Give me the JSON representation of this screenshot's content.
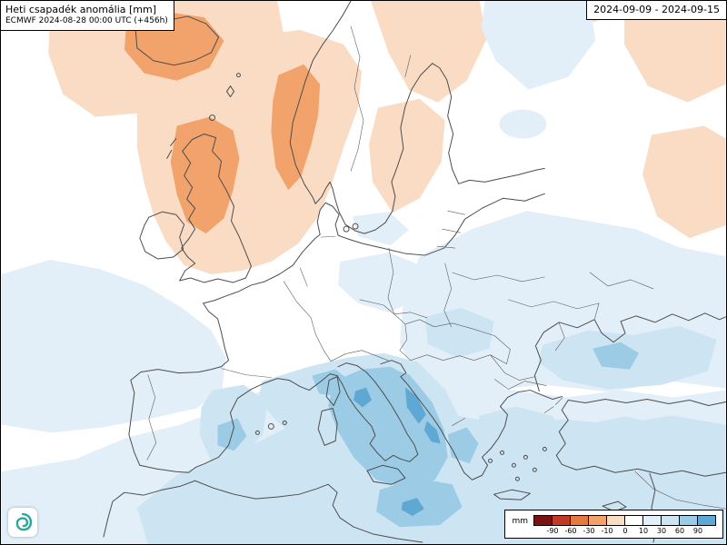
{
  "header": {
    "title": "Heti csapadék anomália [mm]",
    "model_line": "ECMWF 2024-08-28 00:00 UTC (+456h)"
  },
  "period": {
    "range": "2024-09-09 - 2024-09-15"
  },
  "legend": {
    "unit": "mm",
    "ticks": [
      "-90",
      "-60",
      "-30",
      "-10",
      "0",
      "10",
      "30",
      "60",
      "90"
    ],
    "colors": [
      "#7a1212",
      "#c03a26",
      "#e5793f",
      "#f2a36c",
      "#fadcc4",
      "#ffffff",
      "#e2eff8",
      "#cde4f2",
      "#9ccbe5",
      "#5fa8d3"
    ]
  },
  "map": {
    "coast_color": "#4d4d4d",
    "border_color": "#5c5c5c",
    "anomaly_classes": {
      "neg_strong": "#f2a36c",
      "neg_light": "#fadcc4",
      "pos_faint": "#e2eff8",
      "pos_light": "#cde4f2",
      "pos_medium": "#9ccbe5",
      "pos_strong": "#5fa8d3"
    }
  },
  "logo": {
    "name": "spiral-logo",
    "color": "#2aa79f"
  }
}
